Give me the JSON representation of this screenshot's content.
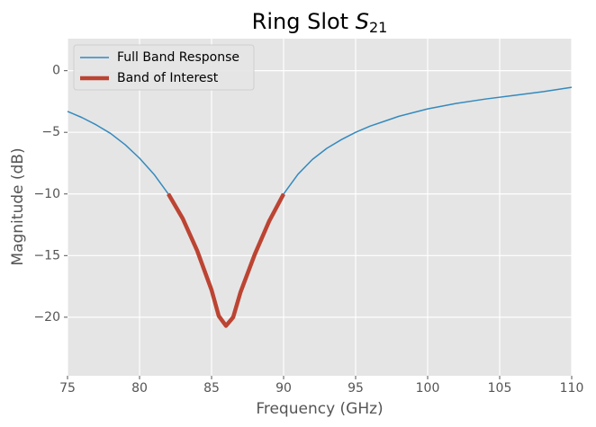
{
  "chart_data": {
    "type": "line",
    "title": "Ring Slot ",
    "title_symbol": "S",
    "title_subscript": "21",
    "x_label": "Frequency (GHz)",
    "y_label": "Magnitude (dB)",
    "xlim": [
      75,
      110
    ],
    "ylim": [
      -24.75,
      2.6
    ],
    "xticks": [
      75,
      80,
      85,
      90,
      95,
      100,
      105,
      110
    ],
    "yticks": [
      {
        "value": -20,
        "label": "−20"
      },
      {
        "value": -15,
        "label": "−15"
      },
      {
        "value": -10,
        "label": "−10"
      },
      {
        "value": -5,
        "label": "−5"
      },
      0
    ],
    "grid": true,
    "legend": "upper left",
    "series": [
      {
        "name": "Full Band Response",
        "color": "#348ABD",
        "width": 1.5,
        "x": [
          75,
          76,
          77,
          78,
          79,
          80,
          81,
          82,
          83,
          84,
          85,
          85.5,
          86,
          86.5,
          87,
          88,
          89,
          90,
          91,
          92,
          93,
          94,
          95,
          96,
          97,
          98,
          99,
          100,
          102,
          104,
          106,
          108,
          110
        ],
        "values": [
          -3.3,
          -3.8,
          -4.4,
          -5.1,
          -6.0,
          -7.1,
          -8.4,
          -10.0,
          -12.0,
          -14.6,
          -17.8,
          -19.9,
          -20.7,
          -20.0,
          -18.0,
          -14.9,
          -12.2,
          -10.0,
          -8.4,
          -7.2,
          -6.3,
          -5.6,
          -5.0,
          -4.5,
          -4.1,
          -3.7,
          -3.4,
          -3.1,
          -2.65,
          -2.3,
          -2.0,
          -1.7,
          -1.35
        ]
      },
      {
        "name": "Band of Interest",
        "color": "#BC4433",
        "width": 4.5,
        "x": [
          82,
          83,
          84,
          85,
          85.5,
          86,
          86.5,
          87,
          88,
          89,
          90
        ],
        "values": [
          -10.0,
          -12.0,
          -14.6,
          -17.8,
          -19.9,
          -20.7,
          -20.0,
          -18.0,
          -14.9,
          -12.2,
          -10.0
        ]
      }
    ]
  }
}
